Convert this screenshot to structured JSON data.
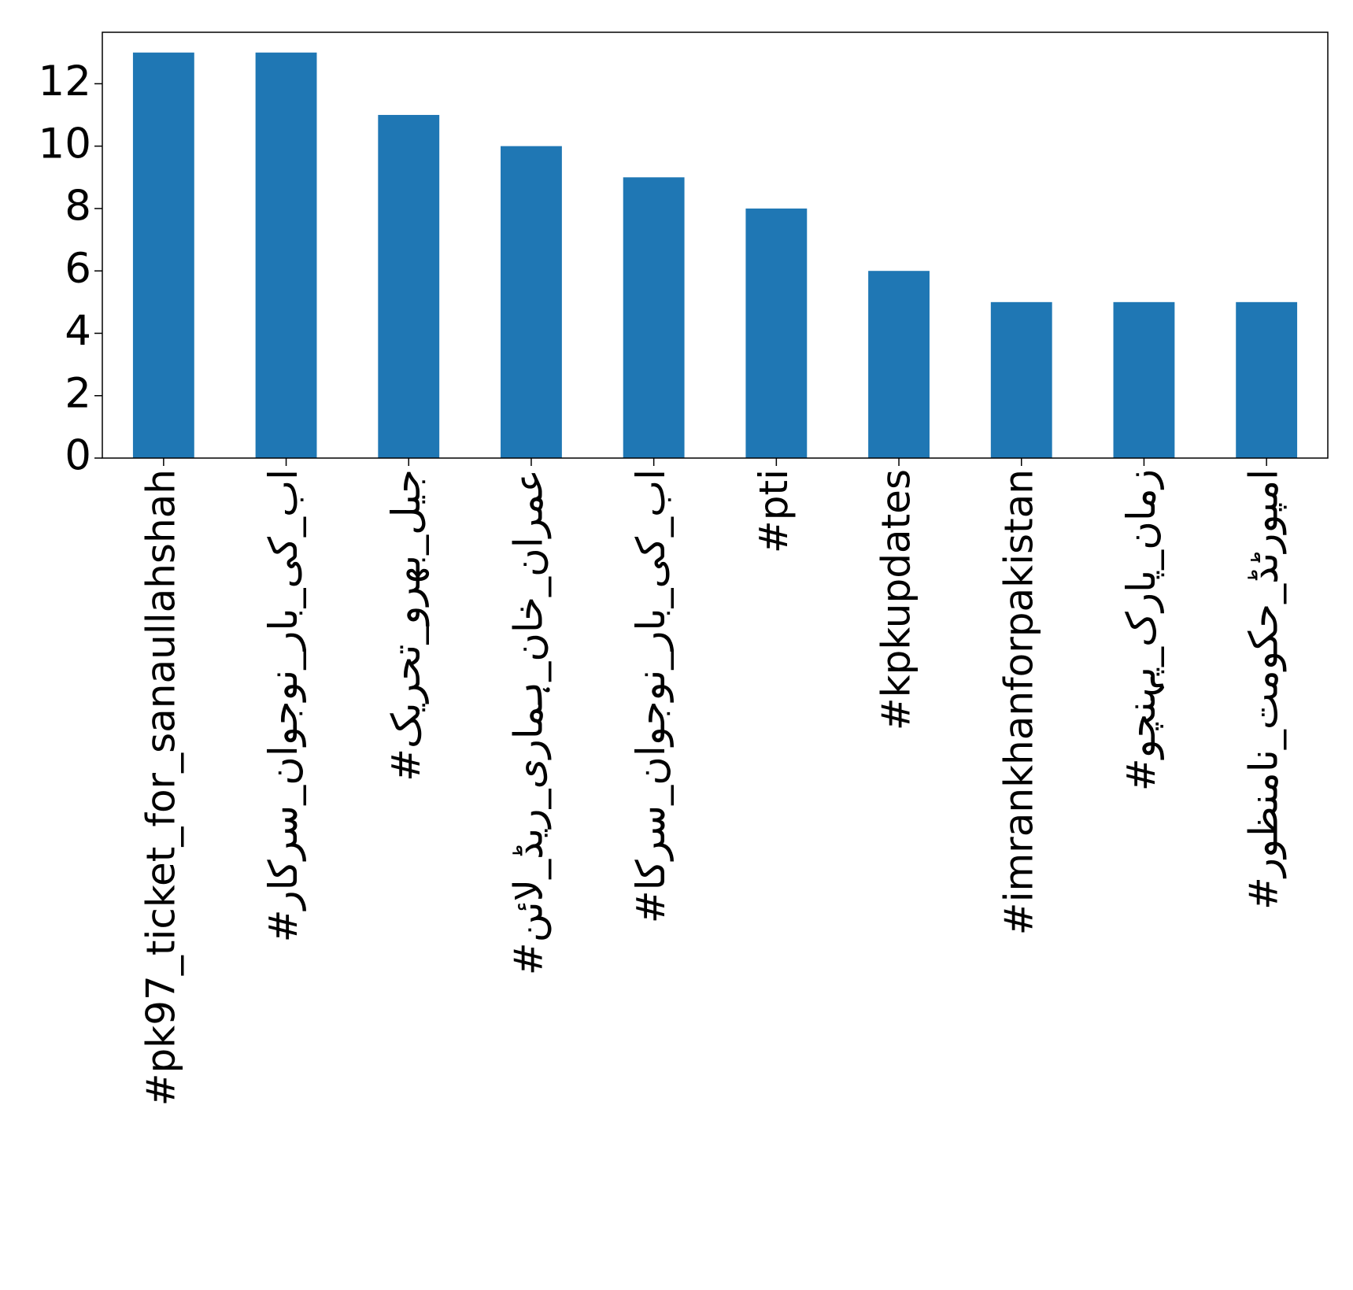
{
  "chart_data": {
    "type": "bar",
    "categories": [
      "#pk97_ticket_for_sanaullahshah",
      "#اب_کی_بار_نوجوان_سرکار",
      "#جیل_بھرو_تحریک",
      "#عمران_خان_ہماری_ریڈ_لائن",
      "#اب_کی_بار_نوجوان_سرکا",
      "#pti",
      "#kpkupdates",
      "#imrankhanforpakistan",
      "#زمان_پارک_پہنچو",
      "#امپورٹڈ_حکومت_نامنظور"
    ],
    "values": [
      13,
      13,
      11,
      10,
      9,
      8,
      6,
      5,
      5,
      5
    ],
    "color": "#1f77b4",
    "ylim": [
      0,
      13.65
    ],
    "yticks": [
      0,
      2,
      4,
      6,
      8,
      10,
      12
    ],
    "grid": false
  }
}
